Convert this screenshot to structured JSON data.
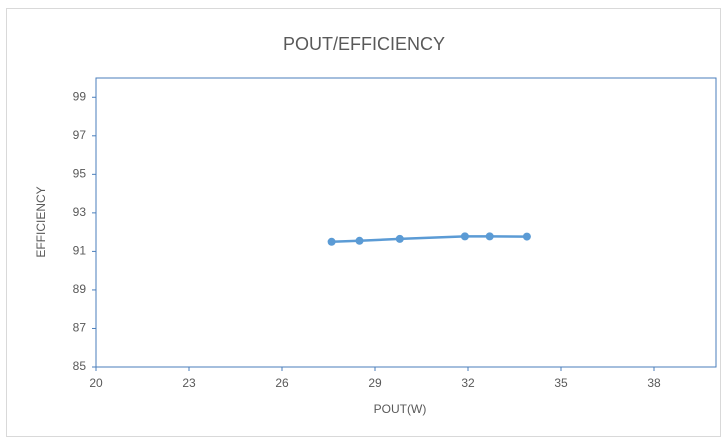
{
  "chart_data": {
    "type": "line",
    "title": "POUT/EFFICIENCY",
    "x_label": "POUT(W)",
    "y_label": "EFFICIENCY",
    "x": [
      27.6,
      28.5,
      29.8,
      31.9,
      32.7,
      33.9
    ],
    "series": [
      {
        "name": "EFFICIENCY",
        "color": "#5b9bd5",
        "values": [
          91.5,
          91.55,
          91.65,
          91.78,
          91.78,
          91.77
        ]
      }
    ],
    "xlim": [
      20,
      40
    ],
    "xticks": [
      20,
      23,
      26,
      29,
      32,
      35,
      38
    ],
    "ylim": [
      85,
      100
    ],
    "yticks": [
      85,
      87,
      89,
      91,
      93,
      95,
      97,
      99
    ],
    "grid": false
  }
}
